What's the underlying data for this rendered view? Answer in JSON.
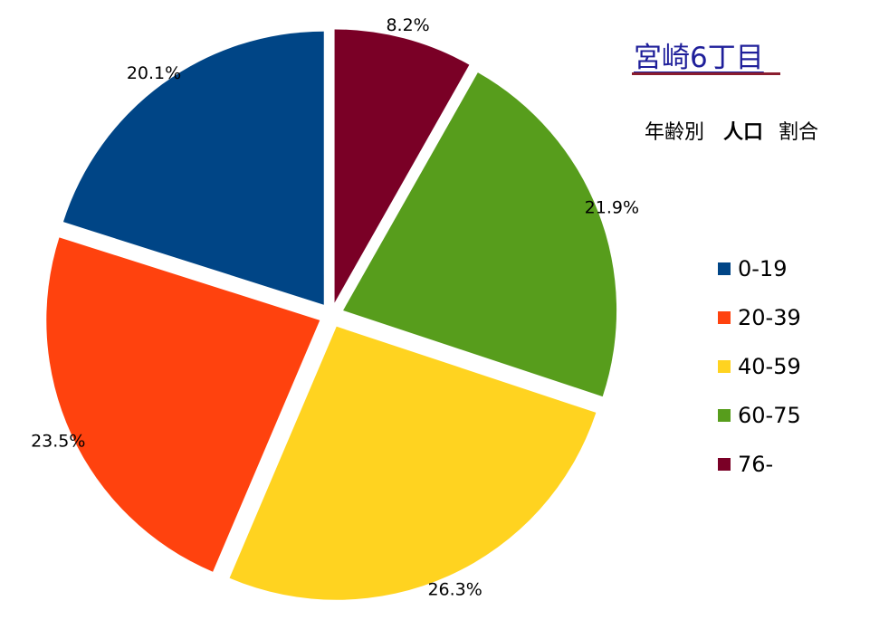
{
  "title": "宮崎6丁目",
  "subtitle": {
    "part1": "年齢別",
    "part2": "人口",
    "part3": "割合"
  },
  "chart_data": {
    "type": "pie",
    "exploded": true,
    "start_angle_deg": 0,
    "direction": "clockwise",
    "slices": [
      {
        "label": "76-",
        "value": 8.2,
        "display": "8.2%",
        "color": "#7a0026"
      },
      {
        "label": "60-75",
        "value": 21.9,
        "display": "21.9%",
        "color": "#579d1c"
      },
      {
        "label": "40-59",
        "value": 26.3,
        "display": "26.3%",
        "color": "#ffd320"
      },
      {
        "label": "20-39",
        "value": 23.5,
        "display": "23.5%",
        "color": "#ff420e"
      },
      {
        "label": "0-19",
        "value": 20.1,
        "display": "20.1%",
        "color": "#004586"
      }
    ],
    "legend": {
      "placement": "right",
      "order": [
        "0-19",
        "20-39",
        "40-59",
        "60-75",
        "76-"
      ]
    }
  }
}
